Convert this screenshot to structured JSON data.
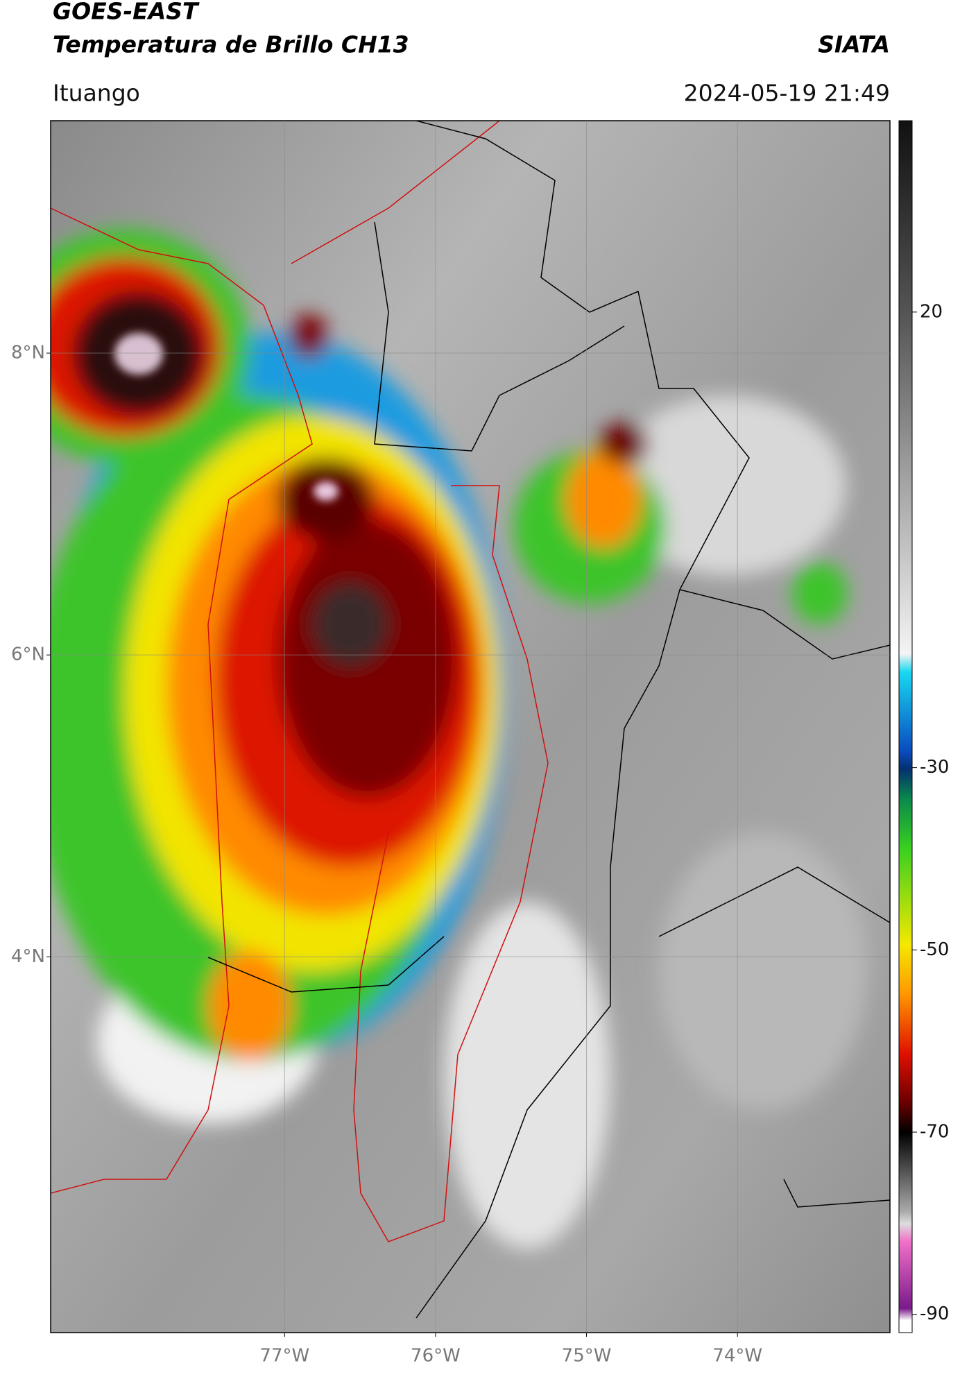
{
  "header": {
    "title_line1": "GOES-EAST",
    "title_line2": "Temperatura de Brillo CH13",
    "agency": "SIATA",
    "location": "Ituango",
    "datetime": "2024-05-19 21:49"
  },
  "map": {
    "lonlim": [
      -78.55,
      -72.99
    ],
    "latlim": [
      1.51,
      9.54
    ],
    "lon_ticks": [
      {
        "value": -77,
        "label": "77°W"
      },
      {
        "value": -76,
        "label": "76°W"
      },
      {
        "value": -75,
        "label": "75°W"
      },
      {
        "value": -74,
        "label": "74°W"
      }
    ],
    "lat_ticks": [
      {
        "value": 8,
        "label": "8°N"
      },
      {
        "value": 6,
        "label": "6°N"
      },
      {
        "value": 4,
        "label": "4°N"
      }
    ],
    "grid": true
  },
  "colorbar": {
    "lim": [
      -92,
      41
    ],
    "ticks": [
      20,
      -30,
      -50,
      -70,
      -90
    ]
  }
}
